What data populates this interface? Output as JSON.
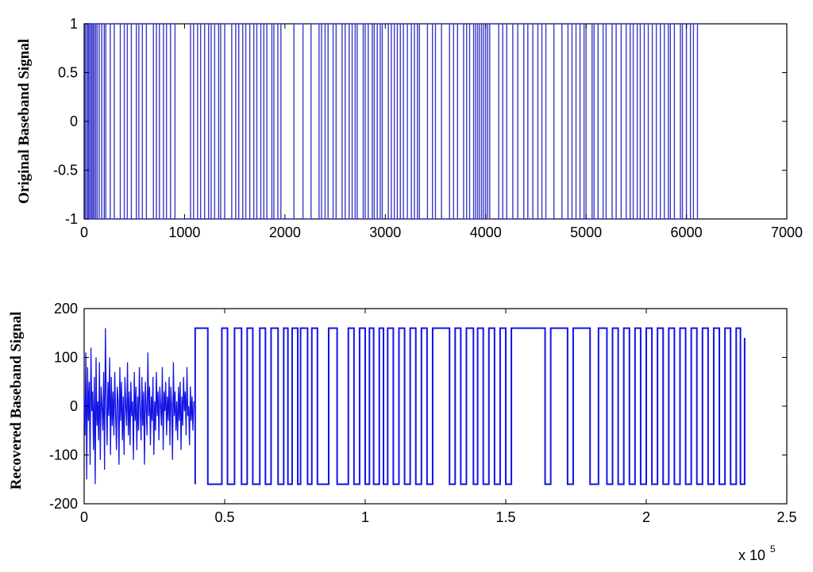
{
  "chart_data": [
    {
      "type": "line",
      "title": "",
      "xlabel": "",
      "ylabel": "Original Baseband Signal",
      "xlim": [
        0,
        7000
      ],
      "ylim": [
        -1,
        1
      ],
      "xticks": [
        0,
        1000,
        2000,
        3000,
        4000,
        5000,
        6000,
        7000
      ],
      "yticks": [
        -1,
        -0.5,
        0,
        0.5,
        1
      ],
      "xtick_labels": [
        "0",
        "1000",
        "2000",
        "3000",
        "4000",
        "5000",
        "6000",
        "7000"
      ],
      "ytick_labels": [
        "-1",
        "-0.5",
        "0",
        "0.5",
        "1"
      ],
      "grid": false,
      "color": "#3b3bc8",
      "series": [
        {
          "signal_end": 6130,
          "transitions": [
            10,
            25,
            38,
            48,
            62,
            75,
            88,
            100,
            115,
            130,
            150,
            175,
            200,
            215,
            260,
            300,
            360,
            400,
            430,
            470,
            520,
            545,
            580,
            620,
            690,
            720,
            750,
            790,
            820,
            860,
            905,
            1060,
            1090,
            1130,
            1160,
            1200,
            1240,
            1265,
            1300,
            1340,
            1360,
            1400,
            1470,
            1510,
            1540,
            1580,
            1610,
            1650,
            1690,
            1720,
            1760,
            1790,
            1820,
            1870,
            1890,
            1930,
            1960,
            2090,
            2180,
            2260,
            2340,
            2365,
            2400,
            2430,
            2480,
            2510,
            2570,
            2600,
            2640,
            2670,
            2700,
            2720,
            2780,
            2800,
            2830,
            2870,
            2890,
            2920,
            2950,
            2970,
            3030,
            3060,
            3090,
            3120,
            3150,
            3180,
            3220,
            3260,
            3290,
            3320,
            3340,
            3420,
            3470,
            3500,
            3560,
            3640,
            3680,
            3720,
            3780,
            3810,
            3840,
            3880,
            3900,
            3920,
            3940,
            3960,
            3980,
            4000,
            4020,
            4040,
            4130,
            4170,
            4210,
            4270,
            4320,
            4380,
            4420,
            4470,
            4520,
            4560,
            4600,
            4680,
            4760,
            4820,
            4860,
            4900,
            4940,
            4980,
            5000,
            5060,
            5080,
            5120,
            5170,
            5200,
            5260,
            5300,
            5350,
            5400,
            5440,
            5470,
            5510,
            5540,
            5580,
            5620,
            5660,
            5700,
            5740,
            5780,
            5820,
            5840,
            5880,
            5940,
            5960,
            6000,
            6040,
            6070,
            6110
          ]
        }
      ]
    },
    {
      "type": "line",
      "title": "",
      "xlabel": "",
      "ylabel": "Recovered Baseband Signal",
      "xlim": [
        0,
        250000
      ],
      "ylim": [
        -200,
        200
      ],
      "xticks": [
        0,
        50000,
        100000,
        150000,
        200000,
        250000
      ],
      "yticks": [
        -200,
        -100,
        0,
        100,
        200
      ],
      "xtick_labels": [
        "0",
        "0.5",
        "1",
        "1.5",
        "2",
        "2.5"
      ],
      "ytick_labels": [
        "-200",
        "-100",
        "0",
        "100",
        "200"
      ],
      "x_multiplier_label": "x 10",
      "x_multiplier_exponent": "5",
      "grid": false,
      "color": "#1414e6",
      "series": [
        {
          "noisy_segment": {
            "x_range": [
              0,
              39000
            ],
            "values": [
              20,
              -60,
              110,
              -150,
              80,
              -30,
              50,
              -120,
              120,
              -10,
              30,
              -90,
              60,
              -160,
              100,
              -40,
              10,
              -70,
              90,
              -110,
              40,
              0,
              -50,
              70,
              -130,
              160,
              20,
              -80,
              50,
              -20,
              100,
              -100,
              60,
              -40,
              30,
              -60,
              70,
              -10,
              -90,
              40,
              10,
              -120,
              80,
              -30,
              50,
              -70,
              20,
              -100,
              60,
              0,
              -40,
              90,
              -60,
              30,
              -80,
              50,
              -20,
              10,
              -110,
              70,
              -30,
              40,
              -90,
              20,
              -50,
              80,
              -10,
              -70,
              60,
              -40,
              30,
              -120,
              50,
              0,
              -60,
              110,
              -20,
              40,
              -80,
              20,
              -30,
              60,
              -100,
              10,
              -50,
              70,
              -20,
              30,
              -70,
              40,
              0,
              -40,
              80,
              -90,
              30,
              -10,
              50,
              -60,
              20,
              -30,
              60,
              -80,
              40,
              0,
              -110,
              90,
              -20,
              30,
              -50,
              10,
              -70,
              40,
              -30,
              50,
              -90,
              20,
              -40,
              60,
              -10,
              30,
              -60,
              80,
              -20,
              0,
              -80,
              40,
              -30,
              20,
              -50,
              10
            ]
          },
          "level": 160,
          "square_wave_end": 235000,
          "transitions": [
            39500,
            44000,
            49000,
            51000,
            53500,
            56000,
            58000,
            60000,
            62500,
            64500,
            66500,
            69000,
            71000,
            72500,
            74000,
            76000,
            77000,
            79500,
            81000,
            83000,
            87000,
            90000,
            94000,
            96000,
            98000,
            100000,
            101500,
            103000,
            105000,
            106500,
            108000,
            110000,
            112000,
            114000,
            116000,
            118000,
            120000,
            122000,
            124000,
            130000,
            132000,
            134000,
            136000,
            138500,
            140000,
            142000,
            144000,
            146000,
            148000,
            150000,
            152000,
            164000,
            166000,
            172000,
            174000,
            180000,
            183000,
            186000,
            188000,
            190000,
            192000,
            194000,
            196000,
            198000,
            200000,
            202000,
            204000,
            206000,
            208000,
            210000,
            212000,
            214000,
            216000,
            218000,
            220000,
            222000,
            224000,
            226000,
            228000,
            230000,
            232000,
            233500
          ]
        }
      ]
    }
  ]
}
